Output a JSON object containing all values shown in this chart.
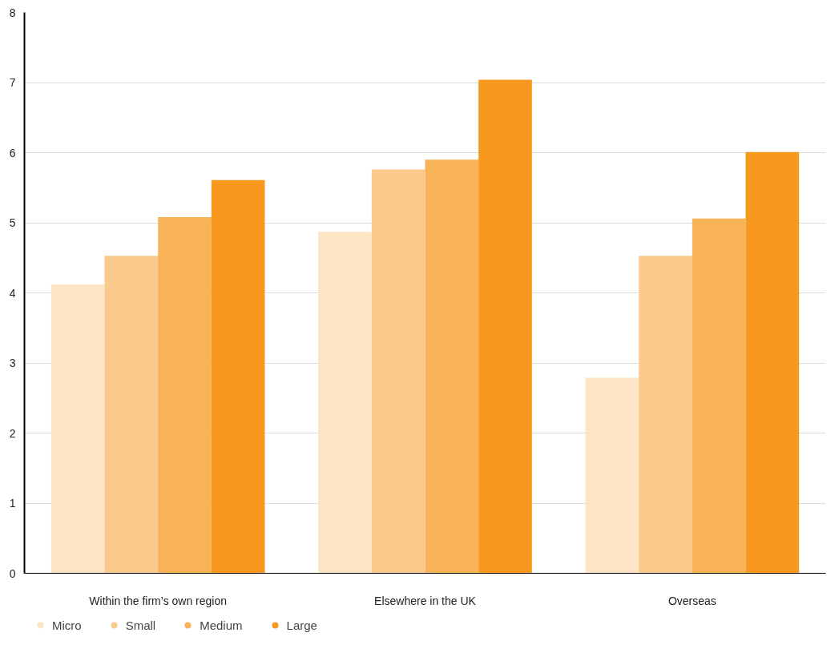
{
  "chart_data": {
    "type": "bar",
    "categories": [
      "Within the firm’s own region",
      "Elsewhere in the UK",
      "Overseas"
    ],
    "series": [
      {
        "name": "Micro",
        "color": "#fce4c4",
        "values": [
          4.12,
          4.87,
          2.79
        ]
      },
      {
        "name": "Small",
        "color": "#f9ca8c",
        "values": [
          4.53,
          5.76,
          4.53
        ]
      },
      {
        "name": "Medium",
        "color": "#f8b257",
        "values": [
          5.08,
          5.9,
          5.06
        ]
      },
      {
        "name": "Large",
        "color": "#f7991f",
        "values": [
          5.61,
          7.04,
          6.01
        ]
      }
    ],
    "ylim": [
      0,
      8
    ],
    "yticks": [
      0,
      1,
      2,
      3,
      4,
      5,
      6,
      7,
      8
    ],
    "grid": "y",
    "legend": "bottom left"
  }
}
